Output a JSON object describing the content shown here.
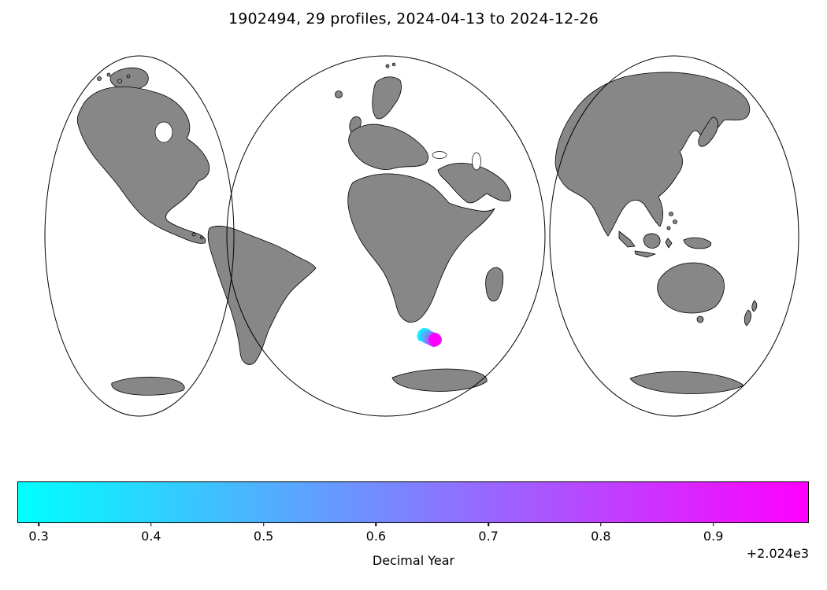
{
  "figure": {
    "title": "1902494, 29 profiles, 2024-04-13 to 2024-12-26"
  },
  "chart_data": {
    "type": "scatter",
    "subtype": "geo-scatter on interrupted world map (3 oval lobes, Mollweide-style)",
    "title": "1902494, 29 profiles, 2024-04-13 to 2024-12-26",
    "float_id": "1902494",
    "n_profiles": 29,
    "date_start": "2024-04-13",
    "date_end": "2024-12-26",
    "land_color": "#878787",
    "ocean_color": "#ffffff",
    "outline_color": "#000000",
    "note": "profile positions cluster in the ocean south of Africa (~40°S); early profiles cyan, late profiles magenta",
    "colorbar": {
      "label": "Decimal Year",
      "offset_text": "+2.024e3",
      "colormap": "cool",
      "color_start": "#00ffff",
      "color_end": "#ff00ff",
      "vmin": 2024.281,
      "vmax": 2024.985,
      "ticks": [
        0.3,
        0.4,
        0.5,
        0.6,
        0.7,
        0.8,
        0.9
      ],
      "tick_labels": [
        "0.3",
        "0.4",
        "0.5",
        "0.6",
        "0.7",
        "0.8",
        "0.9"
      ]
    },
    "points": [
      {
        "decimal_year": 2024.281,
        "x": 537.0,
        "y": 425.5
      },
      {
        "decimal_year": 2024.306,
        "x": 538.5,
        "y": 424.0
      },
      {
        "decimal_year": 2024.331,
        "x": 536.5,
        "y": 427.5
      },
      {
        "decimal_year": 2024.356,
        "x": 539.5,
        "y": 426.5
      },
      {
        "decimal_year": 2024.381,
        "x": 541.0,
        "y": 424.5
      },
      {
        "decimal_year": 2024.407,
        "x": 540.0,
        "y": 428.0
      },
      {
        "decimal_year": 2024.432,
        "x": 542.5,
        "y": 426.0
      },
      {
        "decimal_year": 2024.457,
        "x": 543.5,
        "y": 428.5
      },
      {
        "decimal_year": 2024.482,
        "x": 542.0,
        "y": 430.0
      },
      {
        "decimal_year": 2024.507,
        "x": 544.5,
        "y": 427.5
      },
      {
        "decimal_year": 2024.532,
        "x": 545.5,
        "y": 429.5
      },
      {
        "decimal_year": 2024.557,
        "x": 546.5,
        "y": 428.0
      },
      {
        "decimal_year": 2024.583,
        "x": 547.5,
        "y": 430.5
      },
      {
        "decimal_year": 2024.608,
        "x": 546.0,
        "y": 431.5
      },
      {
        "decimal_year": 2024.633,
        "x": 548.5,
        "y": 429.0
      },
      {
        "decimal_year": 2024.658,
        "x": 549.5,
        "y": 431.0
      },
      {
        "decimal_year": 2024.683,
        "x": 548.0,
        "y": 432.5
      },
      {
        "decimal_year": 2024.708,
        "x": 550.5,
        "y": 430.0
      },
      {
        "decimal_year": 2024.733,
        "x": 551.5,
        "y": 432.0
      },
      {
        "decimal_year": 2024.759,
        "x": 550.0,
        "y": 433.0
      },
      {
        "decimal_year": 2024.784,
        "x": 552.5,
        "y": 430.5
      },
      {
        "decimal_year": 2024.809,
        "x": 553.0,
        "y": 432.5
      },
      {
        "decimal_year": 2024.834,
        "x": 551.0,
        "y": 434.0
      },
      {
        "decimal_year": 2024.859,
        "x": 553.5,
        "y": 431.0
      },
      {
        "decimal_year": 2024.884,
        "x": 552.0,
        "y": 433.5
      },
      {
        "decimal_year": 2024.909,
        "x": 554.0,
        "y": 432.0
      },
      {
        "decimal_year": 2024.935,
        "x": 552.5,
        "y": 430.0
      },
      {
        "decimal_year": 2024.96,
        "x": 553.0,
        "y": 433.0
      },
      {
        "decimal_year": 2024.985,
        "x": 551.5,
        "y": 431.5
      }
    ]
  }
}
